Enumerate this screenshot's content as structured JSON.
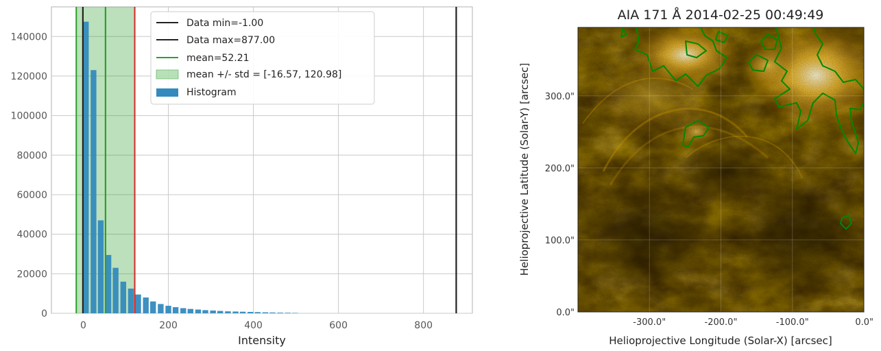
{
  "chart_data": [
    {
      "type": "bar",
      "title": "",
      "xlabel": "Intensity",
      "ylabel": "",
      "xlim": [
        -75,
        915
      ],
      "ylim": [
        0,
        155000
      ],
      "x_ticks": [
        "0",
        "200",
        "400",
        "600",
        "800"
      ],
      "x_tick_values": [
        0,
        200,
        400,
        600,
        800
      ],
      "y_ticks": [
        "0",
        "20000",
        "40000",
        "60000",
        "80000",
        "100000",
        "120000",
        "140000"
      ],
      "y_tick_values": [
        0,
        20000,
        40000,
        60000,
        80000,
        100000,
        120000,
        140000
      ],
      "grid": true,
      "legend_position": "top-center",
      "bar_color": "#348abd",
      "bar_width": 13.5,
      "bins": [
        6,
        24,
        41,
        59,
        76,
        94,
        112,
        129,
        147,
        164,
        182,
        200,
        217,
        235,
        252,
        270,
        287,
        305,
        322,
        340,
        358,
        375,
        393,
        410,
        428,
        445,
        463,
        481,
        498
      ],
      "counts": [
        147500,
        123000,
        47000,
        29500,
        23000,
        16000,
        12500,
        9500,
        8000,
        6000,
        4700,
        3800,
        3100,
        2600,
        2200,
        1900,
        1600,
        1400,
        1200,
        1000,
        900,
        800,
        700,
        600,
        500,
        400,
        330,
        270,
        200
      ],
      "lines": [
        {
          "label": "Data min=-1.00",
          "x": -1.0,
          "color": "#222222"
        },
        {
          "label": "Data max=877.00",
          "x": 877.0,
          "color": "#222222"
        },
        {
          "label": "mean=52.21",
          "x": 52.21,
          "color": "#2ca02c"
        }
      ],
      "std_band": {
        "label": "mean +/- std = [-16.57, 120.98]",
        "low": -16.57,
        "high": 120.98,
        "color": "#2ca02c"
      },
      "red_line_x": 120.98,
      "histogram_label": "Histogram"
    },
    {
      "type": "heatmap",
      "title": "AIA 171 Å 2014-02-25 00:49:49",
      "xlabel": "Helioprojective Longitude (Solar-X) [arcsec]",
      "ylabel": "Helioprojective Latitude (Solar-Y) [arcsec]",
      "xlim": [
        -400,
        0
      ],
      "ylim": [
        0,
        395
      ],
      "x_ticks": [
        "-300.0\"",
        "-200.0\"",
        "-100.0\"",
        "0.0\""
      ],
      "x_tick_values": [
        -300,
        -200,
        -100,
        0
      ],
      "y_ticks": [
        "0.0\"",
        "100.0\"",
        "200.0\"",
        "300.0\""
      ],
      "y_tick_values": [
        0,
        100,
        200,
        300
      ],
      "colormap": [
        "#1e1200",
        "#5a3a00",
        "#a06b00",
        "#e0a100",
        "#fff3c0"
      ],
      "contour_color": "#008800"
    }
  ]
}
